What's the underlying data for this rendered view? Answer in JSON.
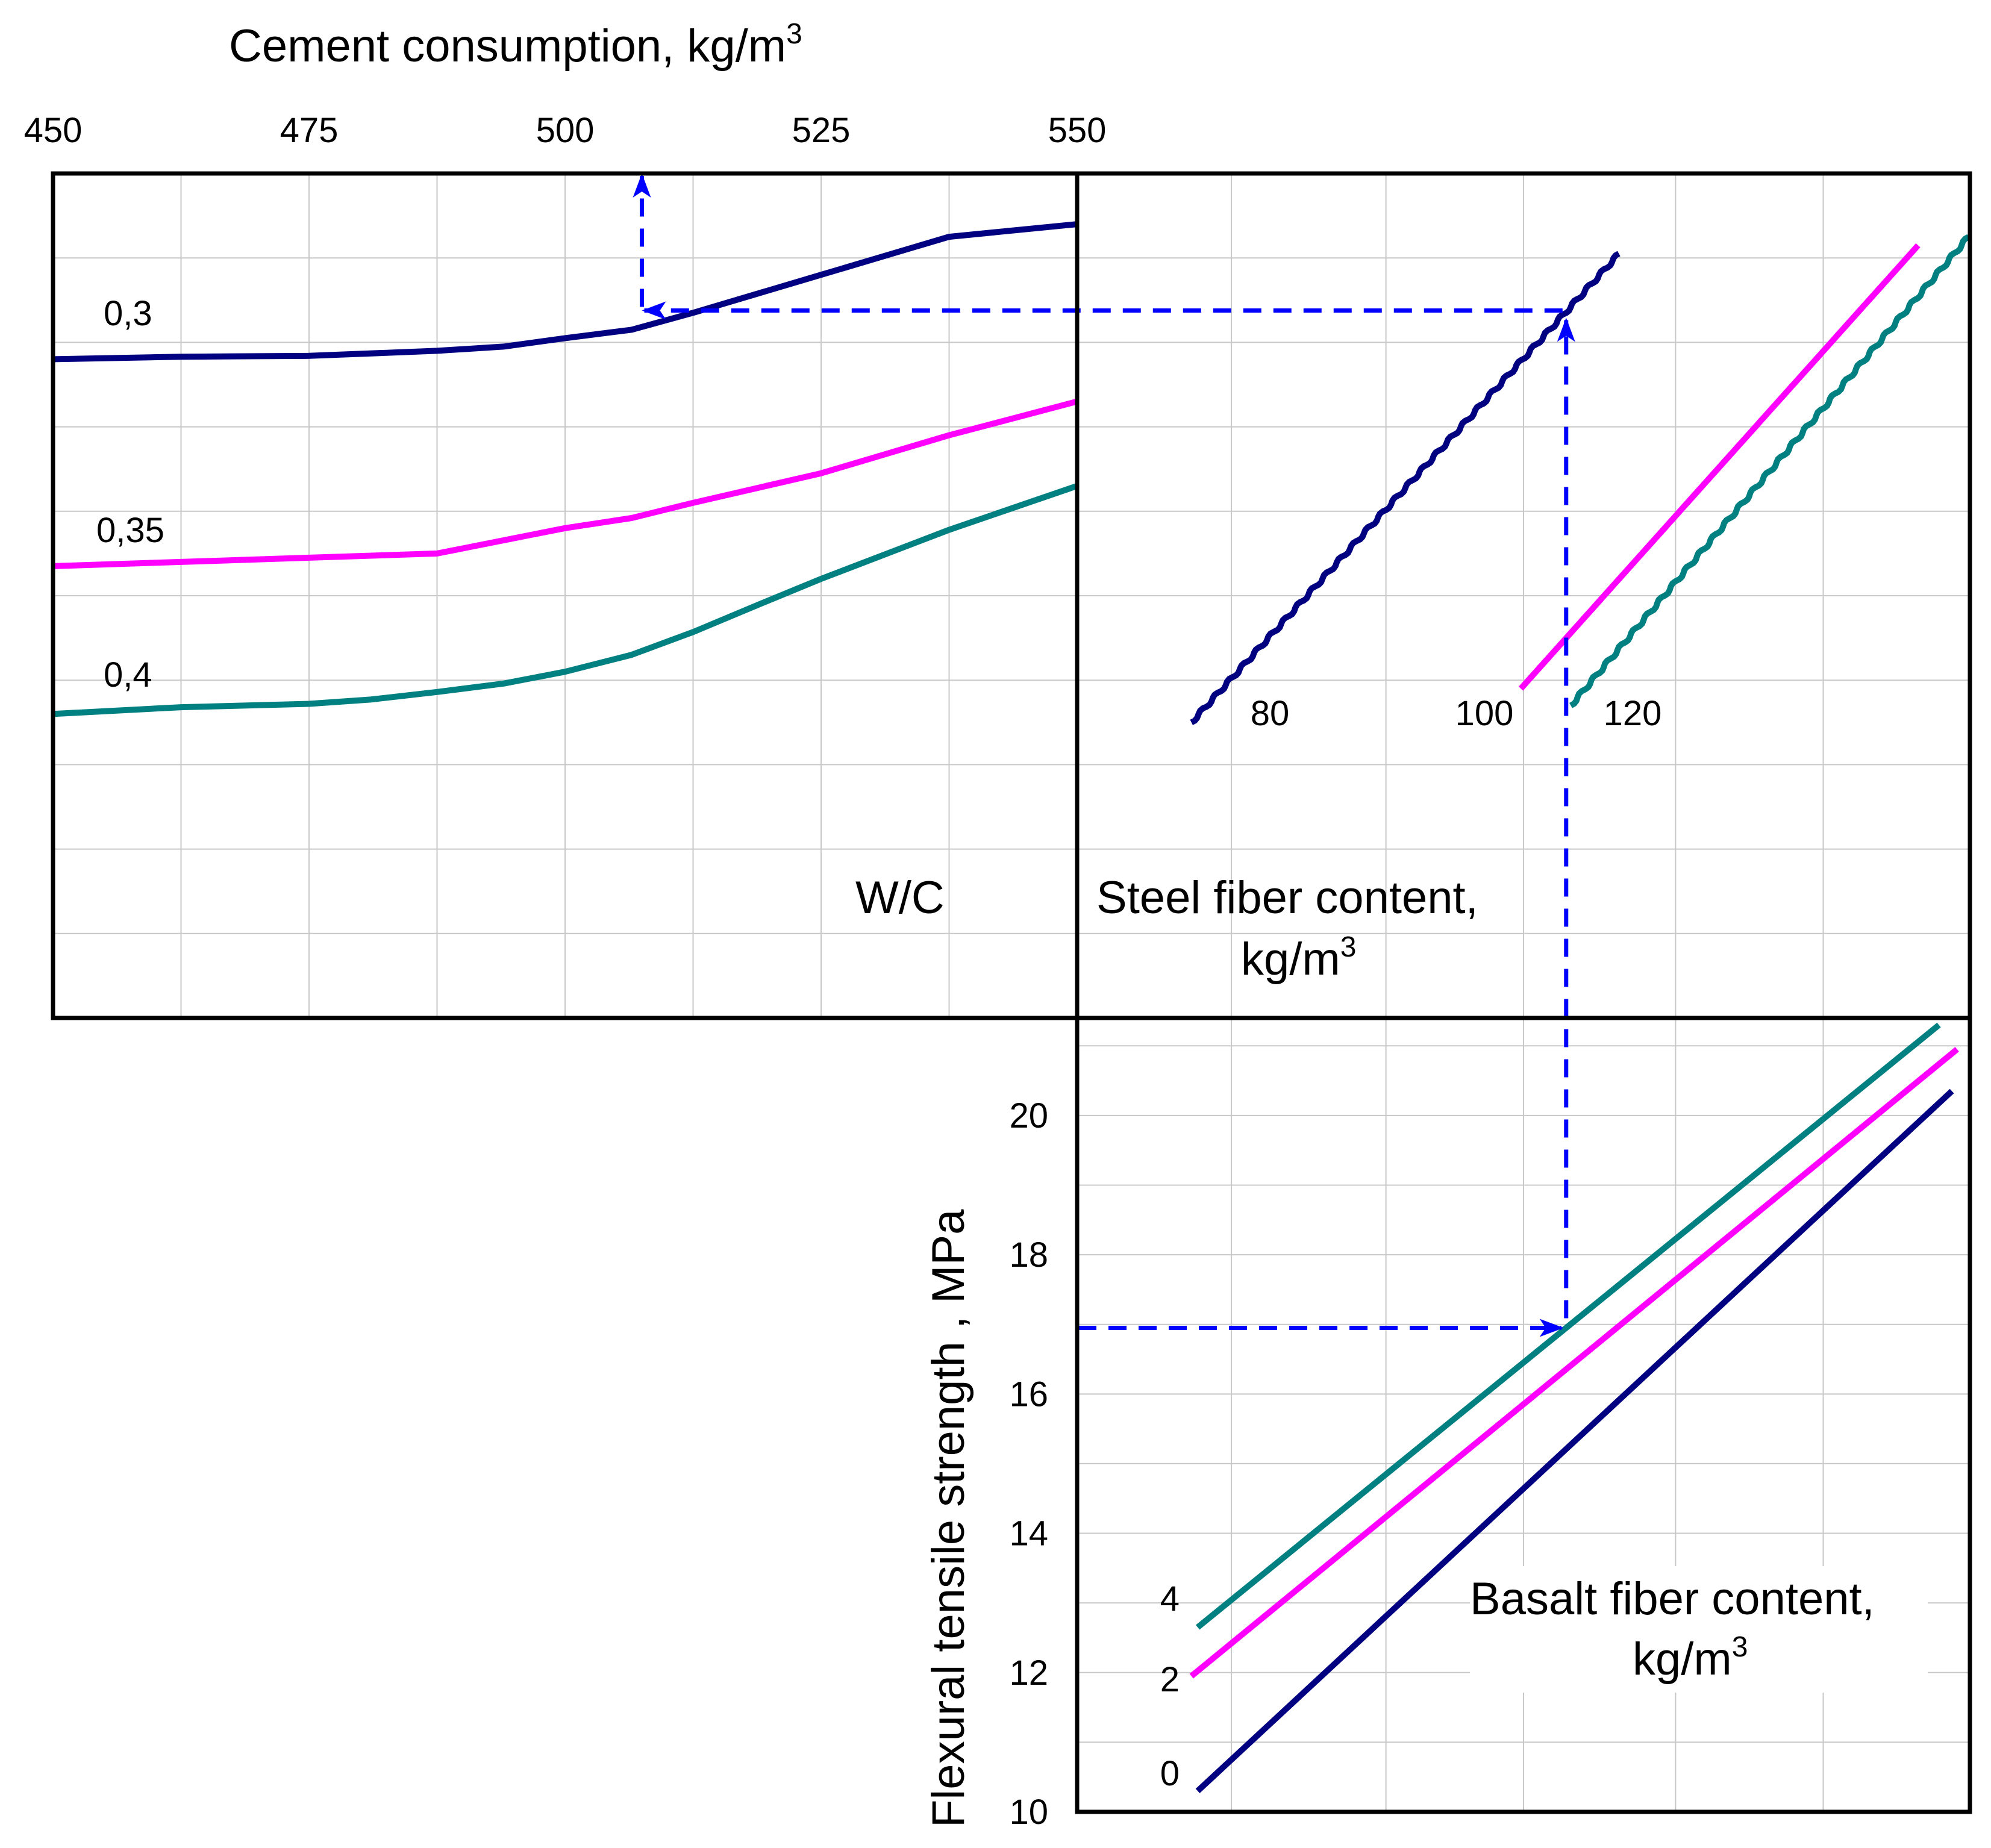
{
  "chart_data": [
    {
      "id": "wc",
      "type": "line",
      "panel": "top-left",
      "title": "Cement consumption, kg/m3",
      "title_main": "Cement consumption, kg/m",
      "title_sup": "3",
      "xlabel": "Cement consumption, kg/m3",
      "ylabel": "",
      "xlim": [
        450,
        550
      ],
      "ylim": [
        0,
        1
      ],
      "x_ticks": [
        450,
        475,
        500,
        525,
        550
      ],
      "x_tick_labels": [
        "450",
        "475",
        "500",
        "525",
        "550"
      ],
      "x_minor_gridlines": [
        462.5,
        487.5,
        512.5,
        537.5
      ],
      "y_gridlines": [
        0.1,
        0.2,
        0.3,
        0.4,
        0.5,
        0.6,
        0.7,
        0.8,
        0.9
      ],
      "grid": true,
      "annotation": "W/C",
      "series": [
        {
          "name": "0,3",
          "color": "#000080",
          "x": [
            450,
            462.5,
            475,
            487.5,
            494,
            500,
            506.5,
            512.5,
            525,
            537.5,
            550
          ],
          "y": [
            0.78,
            0.783,
            0.784,
            0.79,
            0.795,
            0.805,
            0.815,
            0.835,
            0.88,
            0.925,
            0.94
          ]
        },
        {
          "name": "0,35",
          "color": "#ff00ff",
          "x": [
            450,
            462.5,
            475,
            487.5,
            500,
            506.5,
            512.5,
            525,
            537.5,
            550
          ],
          "y": [
            0.535,
            0.54,
            0.545,
            0.55,
            0.58,
            0.592,
            0.61,
            0.645,
            0.69,
            0.73
          ]
        },
        {
          "name": "0,4",
          "color": "#008080",
          "x": [
            450,
            462.5,
            475,
            481,
            487.5,
            494,
            500,
            506.5,
            512.5,
            519,
            525,
            537.5,
            550
          ],
          "y": [
            0.36,
            0.368,
            0.372,
            0.377,
            0.386,
            0.396,
            0.41,
            0.43,
            0.457,
            0.49,
            0.52,
            0.578,
            0.63
          ]
        }
      ]
    },
    {
      "id": "steel",
      "type": "line",
      "panel": "top-right",
      "title": "Steel fiber content, kg/m3",
      "xlabel": "Steel fiber content, kg/m3",
      "label_line1": "Steel fiber content,",
      "label_line2_main": "kg/m",
      "label_line2_sup": "3",
      "ylabel": "",
      "xlim": [
        0,
        1
      ],
      "ylim": [
        0,
        1
      ],
      "x_gridlines": [
        0.1728,
        0.3459,
        0.5,
        0.6703,
        0.8357
      ],
      "y_gridlines": [
        0.1,
        0.2,
        0.3,
        0.4,
        0.5,
        0.6,
        0.7,
        0.8,
        0.9
      ],
      "grid": true,
      "series": [
        {
          "name": "80",
          "color": "#000080",
          "x": [
            0.128,
            0.607
          ],
          "y": [
            0.35,
            0.905
          ]
        },
        {
          "name": "100",
          "color": "#ff00ff",
          "x": [
            0.497,
            0.942
          ],
          "y": [
            0.39,
            0.915
          ]
        },
        {
          "name": "120",
          "color": "#008080",
          "x": [
            0.553,
            0.9985
          ],
          "y": [
            0.37,
            0.925
          ]
        }
      ]
    },
    {
      "id": "basalt",
      "type": "line",
      "panel": "bottom-right",
      "title": "Basalt fiber content, kg/m3",
      "xlabel": "Basalt fiber content, kg/m3",
      "label_line1": "Basalt fiber content,",
      "label_line2_main": "kg/m",
      "label_line2_sup": "3",
      "ylabel": "Flexural tensile strength , MPa",
      "xlim": [
        0,
        1
      ],
      "ylim": [
        10,
        21.4
      ],
      "y_ticks": [
        10,
        12,
        14,
        16,
        18,
        20
      ],
      "y_tick_labels": [
        "10",
        "12",
        "14",
        "16",
        "18",
        "20"
      ],
      "y_minor_gridlines": [
        11,
        13,
        15,
        17,
        19,
        21
      ],
      "x_gridlines": [
        0.1728,
        0.3459,
        0.5,
        0.6703,
        0.8357
      ],
      "grid": true,
      "series": [
        {
          "name": "0",
          "color": "#000080",
          "x": [
            0.135,
            0.9798
          ],
          "y": [
            10.3,
            20.35
          ]
        },
        {
          "name": "2",
          "color": "#ff00ff",
          "x": [
            0.128,
            0.9856
          ],
          "y": [
            11.95,
            20.95
          ]
        },
        {
          "name": "4",
          "color": "#008080",
          "x": [
            0.135,
            0.9653
          ],
          "y": [
            12.65,
            21.3
          ]
        }
      ]
    }
  ],
  "example_path": {
    "color": "#0000ff",
    "cement_consumption": 507.5,
    "strength_mpa": 16.95
  }
}
